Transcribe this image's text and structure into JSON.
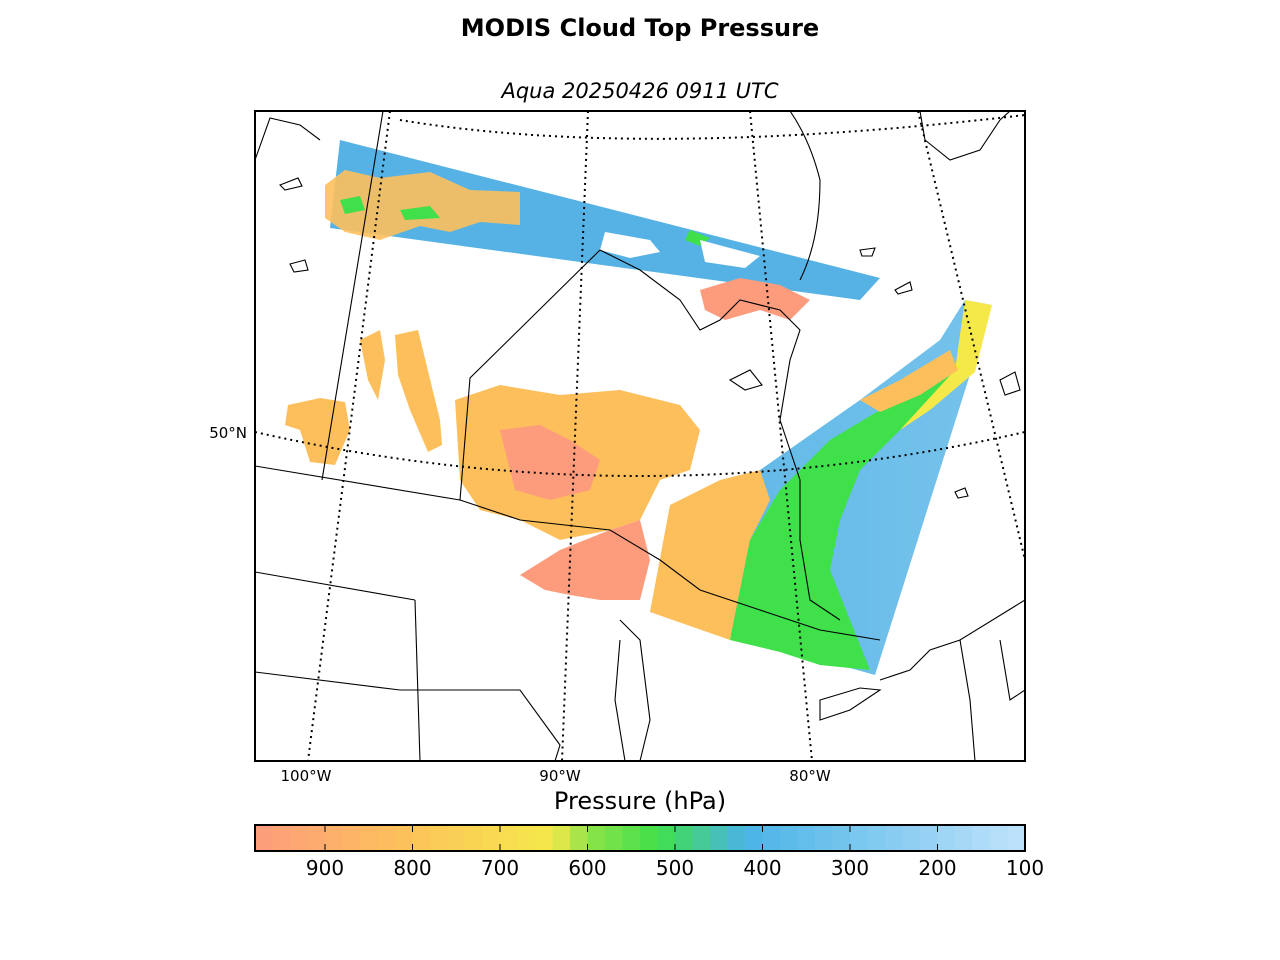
{
  "title": "MODIS Cloud Top Pressure",
  "subtitle": "Aqua 20250426 0911 UTC",
  "map": {
    "parallels": [
      "50°N"
    ],
    "meridians": [
      "100°W",
      "90°W",
      "80°W"
    ]
  },
  "colorbar": {
    "label": "Pressure (hPa)",
    "ticks": [
      "900",
      "800",
      "700",
      "600",
      "500",
      "400",
      "300",
      "200",
      "100"
    ],
    "range": [
      980,
      100
    ],
    "colors": {
      "low_cloud": "#fd9c7c",
      "mid_low": "#fdbf5c",
      "mid": "#f5e94a",
      "mid_high": "#3fe04a",
      "high": "#4ab4e6",
      "very_high": "#c0e2fb"
    }
  }
}
